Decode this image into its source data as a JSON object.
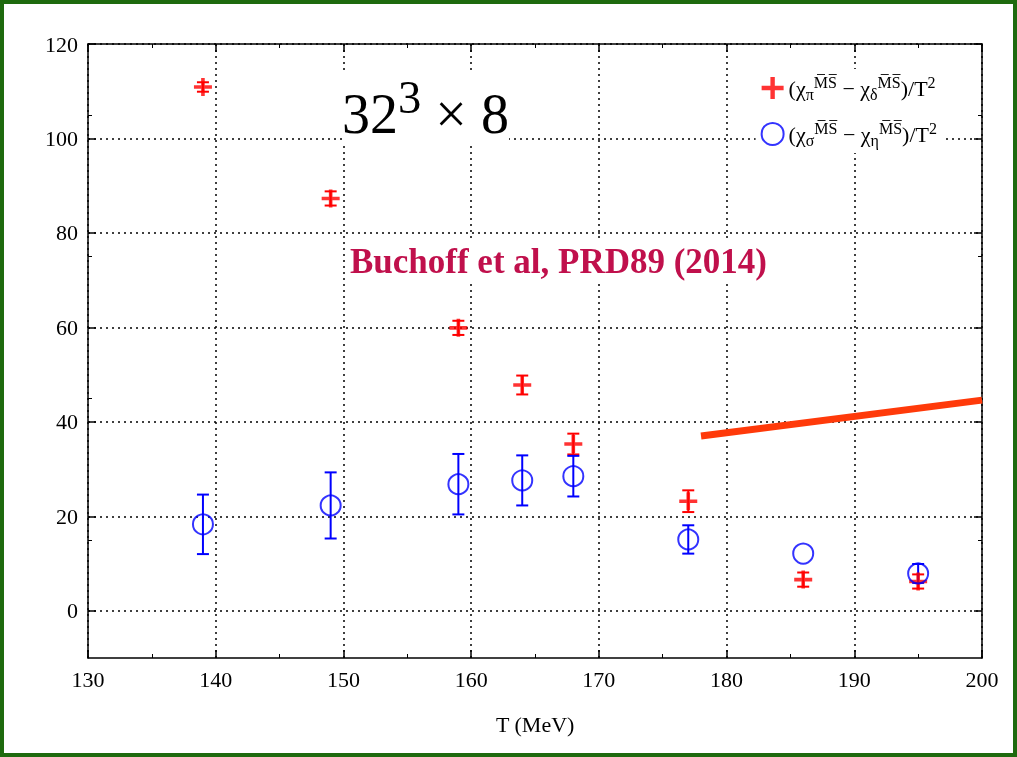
{
  "chart_data": {
    "type": "scatter",
    "xlabel": "T (MeV)",
    "xlim": [
      130,
      200
    ],
    "xticks": [
      130,
      140,
      150,
      160,
      170,
      180,
      190,
      200
    ],
    "ylim": [
      -10,
      120
    ],
    "yticks": [
      0,
      20,
      40,
      60,
      80,
      100,
      120
    ],
    "grid": true,
    "legend": "top right",
    "annotations": [
      "32$^{3}$ × 8",
      "Buchoff et al, PRD89 (2014)"
    ],
    "series": [
      {
        "name": "(χ$_{π}$$^{M̅S̅}$ − χ$_{δ}$$^{M̅S̅}$)/T$^{2}$",
        "color": "#ff0000",
        "marker": "cross",
        "x": [
          139,
          149,
          159,
          164,
          168,
          177,
          186,
          195
        ],
        "values": [
          110.9,
          87.3,
          59.9,
          47.8,
          35.3,
          23.2,
          6.6,
          6.2
        ],
        "errors": [
          1,
          1.5,
          1.5,
          2,
          2.2,
          2.3,
          1.5,
          1.5
        ]
      },
      {
        "name": "(χ$_{σ}$$^{M̅S̅}$ − χ$_{η}$$^{M̅S̅}$)/T$^{2}$",
        "color": "#0000ff",
        "marker": "circle",
        "x": [
          139,
          149,
          159,
          164,
          168,
          177,
          186,
          195
        ],
        "values": [
          18.3,
          22.3,
          26.8,
          27.6,
          28.5,
          15.1,
          12.1,
          7.9
        ],
        "errors": [
          6.3,
          7,
          6.4,
          5.3,
          4.3,
          3,
          null,
          2
        ]
      },
      {
        "type": "line",
        "color": "#ff3a0a",
        "marker": "none",
        "line_style": "solid",
        "x": [
          178,
          200
        ],
        "values": [
          37,
          44.6
        ]
      }
    ]
  }
}
